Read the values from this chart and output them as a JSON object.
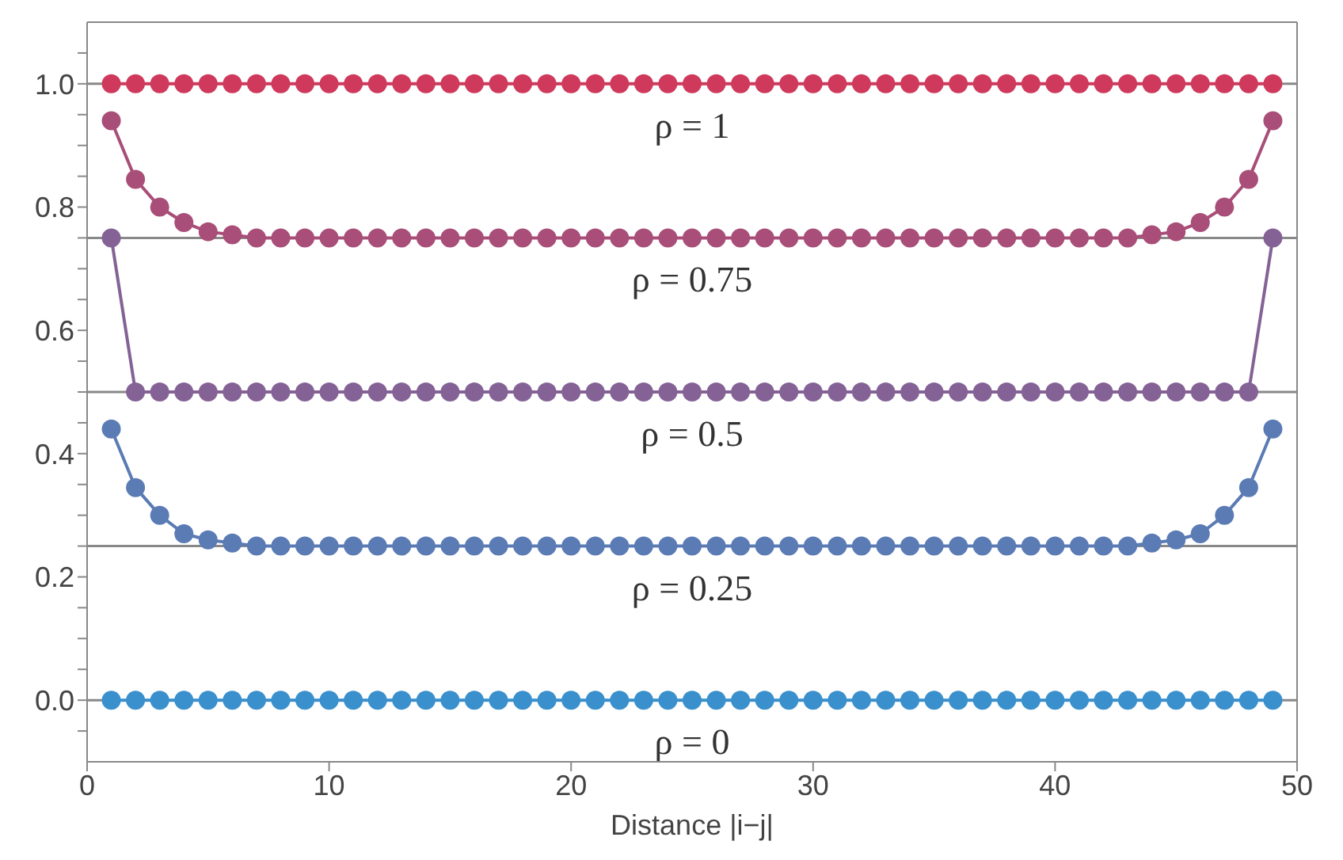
{
  "chart_data": {
    "type": "line",
    "xlabel": "Distance |i−j|",
    "x": [
      1,
      2,
      3,
      4,
      5,
      6,
      7,
      8,
      9,
      10,
      11,
      12,
      13,
      14,
      15,
      16,
      17,
      18,
      19,
      20,
      21,
      22,
      23,
      24,
      25,
      26,
      27,
      28,
      29,
      30,
      31,
      32,
      33,
      34,
      35,
      36,
      37,
      38,
      39,
      40,
      41,
      42,
      43,
      44,
      45,
      46,
      47,
      48,
      49
    ],
    "series": [
      {
        "color": "#cf3a5c",
        "values": [
          1,
          1,
          1,
          1,
          1,
          1,
          1,
          1,
          1,
          1,
          1,
          1,
          1,
          1,
          1,
          1,
          1,
          1,
          1,
          1,
          1,
          1,
          1,
          1,
          1,
          1,
          1,
          1,
          1,
          1,
          1,
          1,
          1,
          1,
          1,
          1,
          1,
          1,
          1,
          1,
          1,
          1,
          1,
          1,
          1,
          1,
          1,
          1,
          1
        ]
      },
      {
        "color": "#a84e78",
        "values": [
          0.94,
          0.845,
          0.8,
          0.775,
          0.76,
          0.755,
          0.75,
          0.75,
          0.75,
          0.75,
          0.75,
          0.75,
          0.75,
          0.75,
          0.75,
          0.75,
          0.75,
          0.75,
          0.75,
          0.75,
          0.75,
          0.75,
          0.75,
          0.75,
          0.75,
          0.75,
          0.75,
          0.75,
          0.75,
          0.75,
          0.75,
          0.75,
          0.75,
          0.75,
          0.75,
          0.75,
          0.75,
          0.75,
          0.75,
          0.75,
          0.75,
          0.75,
          0.75,
          0.755,
          0.76,
          0.775,
          0.8,
          0.845,
          0.94
        ]
      },
      {
        "color": "#846296",
        "values": [
          0.75,
          0.5,
          0.5,
          0.5,
          0.5,
          0.5,
          0.5,
          0.5,
          0.5,
          0.5,
          0.5,
          0.5,
          0.5,
          0.5,
          0.5,
          0.5,
          0.5,
          0.5,
          0.5,
          0.5,
          0.5,
          0.5,
          0.5,
          0.5,
          0.5,
          0.5,
          0.5,
          0.5,
          0.5,
          0.5,
          0.5,
          0.5,
          0.5,
          0.5,
          0.5,
          0.5,
          0.5,
          0.5,
          0.5,
          0.5,
          0.5,
          0.5,
          0.5,
          0.5,
          0.5,
          0.5,
          0.5,
          0.5,
          0.75
        ]
      },
      {
        "color": "#5b7bb5",
        "values": [
          0.44,
          0.345,
          0.3,
          0.27,
          0.26,
          0.255,
          0.25,
          0.25,
          0.25,
          0.25,
          0.25,
          0.25,
          0.25,
          0.25,
          0.25,
          0.25,
          0.25,
          0.25,
          0.25,
          0.25,
          0.25,
          0.25,
          0.25,
          0.25,
          0.25,
          0.25,
          0.25,
          0.25,
          0.25,
          0.25,
          0.25,
          0.25,
          0.25,
          0.25,
          0.25,
          0.25,
          0.25,
          0.25,
          0.25,
          0.25,
          0.25,
          0.25,
          0.25,
          0.255,
          0.26,
          0.27,
          0.3,
          0.345,
          0.44
        ]
      },
      {
        "color": "#3a90cd",
        "values": [
          0,
          0,
          0,
          0,
          0,
          0,
          0,
          0,
          0,
          0,
          0,
          0,
          0,
          0,
          0,
          0,
          0,
          0,
          0,
          0,
          0,
          0,
          0,
          0,
          0,
          0,
          0,
          0,
          0,
          0,
          0,
          0,
          0,
          0,
          0,
          0,
          0,
          0,
          0,
          0,
          0,
          0,
          0,
          0,
          0,
          0,
          0,
          0,
          0
        ]
      }
    ],
    "xlim": [
      0,
      50
    ],
    "xticks": [
      0,
      10,
      20,
      30,
      40,
      50
    ],
    "ylim": [
      -0.1,
      1.1
    ],
    "yticks": [
      {
        "value": -0.05,
        "label": null
      },
      {
        "value": 0,
        "label": "0.0"
      },
      {
        "value": 0.05,
        "label": null
      },
      {
        "value": 0.1,
        "label": null
      },
      {
        "value": 0.15,
        "label": null
      },
      {
        "value": 0.2,
        "label": "0.2"
      },
      {
        "value": 0.25,
        "label": null
      },
      {
        "value": 0.3,
        "label": null
      },
      {
        "value": 0.35,
        "label": null
      },
      {
        "value": 0.4,
        "label": "0.4"
      },
      {
        "value": 0.45,
        "label": null
      },
      {
        "value": 0.5,
        "label": null
      },
      {
        "value": 0.55,
        "label": null
      },
      {
        "value": 0.6,
        "label": "0.6"
      },
      {
        "value": 0.65,
        "label": null
      },
      {
        "value": 0.7,
        "label": null
      },
      {
        "value": 0.75,
        "label": null
      },
      {
        "value": 0.8,
        "label": "0.8"
      },
      {
        "value": 0.85,
        "label": null
      },
      {
        "value": 0.9,
        "label": null
      },
      {
        "value": 0.95,
        "label": null
      },
      {
        "value": 1,
        "label": "1.0"
      },
      {
        "value": 1.05,
        "label": null
      }
    ],
    "ref_lines": [
      {
        "axis": "y",
        "value": 1,
        "label": "ρ = 1",
        "color": "#888888"
      },
      {
        "axis": "y",
        "value": 0.75,
        "label": "ρ = 0.75",
        "color": "#888888"
      },
      {
        "axis": "y",
        "value": 0.5,
        "label": "ρ = 0.5",
        "color": "#888888"
      },
      {
        "axis": "y",
        "value": 0.25,
        "label": "ρ = 0.25",
        "color": "#888888"
      },
      {
        "axis": "y",
        "value": 0,
        "label": "ρ = 0",
        "color": "#888888"
      }
    ],
    "grid": false,
    "marker": "circle",
    "line_style": "solid"
  }
}
